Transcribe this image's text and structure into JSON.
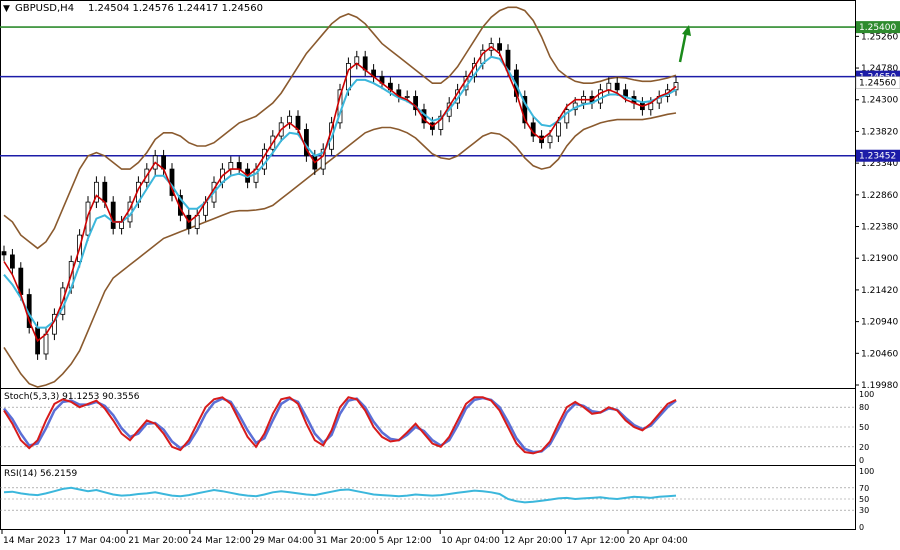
{
  "header": {
    "symbol": "GBPUSD,H4",
    "ohlc": "1.24504 1.24576 1.24417 1.24560"
  },
  "stoch": {
    "label": "Stoch(5,3,3) 91.1253 90.3556",
    "levels": [
      "100",
      "80",
      "50",
      "20",
      "0"
    ]
  },
  "rsi": {
    "label": "RSI(14) 56.2159",
    "levels": [
      "100",
      "70",
      "50",
      "30",
      "0"
    ]
  },
  "colors": {
    "candle": "#000000",
    "fast_ma": "#cc0000",
    "slow_ma": "#3bb7dc",
    "bollinger": "#8a5a2e",
    "level_green": "#2e8b2e",
    "level_blue": "#1c1ca8",
    "stoch_main": "#d81b1b",
    "stoch_signal": "#5b6fd6",
    "rsi_line": "#3bb7dc",
    "arrow": "#1a8a1a"
  },
  "chart_data": [
    {
      "type": "candlestick",
      "title": "GBPUSD,H4",
      "ylim": [
        1.1998,
        1.2575
      ],
      "yticks": [
        "1.25260",
        "1.24780",
        "1.24300",
        "1.23820",
        "1.23340",
        "1.22860",
        "1.22380",
        "1.21900",
        "1.21420",
        "1.20940",
        "1.20460",
        "1.19980"
      ],
      "xticks": [
        "14 Mar 2023",
        "17 Mar 04:00",
        "21 Mar 20:00",
        "24 Mar 12:00",
        "29 Mar 04:00",
        "31 Mar 20:00",
        "5 Apr 12:00",
        "10 Apr 04:00",
        "12 Apr 20:00",
        "17 Apr 12:00",
        "20 Apr 04:00"
      ],
      "levels": [
        {
          "value": 1.254,
          "label": "1.25400",
          "color": "#2e8b2e"
        },
        {
          "value": 1.2465,
          "label": "1.24650",
          "color": "#1c1ca8"
        },
        {
          "value": 1.23452,
          "label": "1.23452",
          "color": "#1c1ca8"
        }
      ],
      "current_price": "1.24560",
      "close_series": [
        1.2195,
        1.2175,
        1.2135,
        1.2085,
        1.2045,
        1.2075,
        1.2105,
        1.2145,
        1.2185,
        1.2225,
        1.2275,
        1.2305,
        1.2275,
        1.2235,
        1.2245,
        1.2275,
        1.2305,
        1.2325,
        1.2345,
        1.2325,
        1.2285,
        1.2255,
        1.2235,
        1.2255,
        1.2275,
        1.2305,
        1.2325,
        1.2335,
        1.2325,
        1.2305,
        1.2325,
        1.2355,
        1.2375,
        1.2395,
        1.2405,
        1.2385,
        1.2345,
        1.2325,
        1.2355,
        1.2395,
        1.2445,
        1.2485,
        1.2495,
        1.2475,
        1.2465,
        1.2455,
        1.2445,
        1.2435,
        1.2435,
        1.2415,
        1.2395,
        1.2385,
        1.2405,
        1.2425,
        1.2445,
        1.2465,
        1.2485,
        1.2505,
        1.2515,
        1.2505,
        1.2475,
        1.2435,
        1.2395,
        1.2375,
        1.2365,
        1.2375,
        1.2395,
        1.2415,
        1.2425,
        1.2435,
        1.2425,
        1.2445,
        1.2455,
        1.2445,
        1.2435,
        1.2425,
        1.2415,
        1.2425,
        1.2435,
        1.2445,
        1.2456
      ],
      "fast_ma": [
        1.2185,
        1.2165,
        1.2135,
        1.2095,
        1.2065,
        1.2075,
        1.2095,
        1.2125,
        1.2165,
        1.2205,
        1.2255,
        1.2285,
        1.2275,
        1.2245,
        1.2245,
        1.2265,
        1.2295,
        1.2315,
        1.2335,
        1.2325,
        1.2295,
        1.2265,
        1.2245,
        1.2255,
        1.2275,
        1.2295,
        1.2315,
        1.2325,
        1.2325,
        1.2315,
        1.2325,
        1.2345,
        1.2365,
        1.2385,
        1.2395,
        1.2385,
        1.2355,
        1.2335,
        1.2345,
        1.2385,
        1.2435,
        1.2475,
        1.2485,
        1.2475,
        1.2465,
        1.2455,
        1.2445,
        1.2435,
        1.243,
        1.242,
        1.24,
        1.239,
        1.24,
        1.242,
        1.244,
        1.246,
        1.248,
        1.25,
        1.251,
        1.25,
        1.247,
        1.244,
        1.24,
        1.238,
        1.237,
        1.238,
        1.24,
        1.242,
        1.243,
        1.243,
        1.243,
        1.244,
        1.2445,
        1.244,
        1.243,
        1.2425,
        1.242,
        1.2425,
        1.2435,
        1.244,
        1.245
      ],
      "slow_ma": [
        1.2165,
        1.215,
        1.213,
        1.2105,
        1.2085,
        1.2085,
        1.2095,
        1.2115,
        1.2145,
        1.218,
        1.222,
        1.225,
        1.2255,
        1.2245,
        1.2245,
        1.2255,
        1.2275,
        1.2295,
        1.2315,
        1.2315,
        1.23,
        1.228,
        1.2265,
        1.2265,
        1.2275,
        1.229,
        1.2305,
        1.2315,
        1.2318,
        1.2313,
        1.2318,
        1.2333,
        1.235,
        1.2368,
        1.238,
        1.2378,
        1.236,
        1.2345,
        1.235,
        1.2372,
        1.241,
        1.2445,
        1.246,
        1.246,
        1.2455,
        1.2448,
        1.244,
        1.2433,
        1.2428,
        1.242,
        1.2408,
        1.2398,
        1.2402,
        1.2415,
        1.2432,
        1.245,
        1.2468,
        1.2485,
        1.2495,
        1.2492,
        1.2475,
        1.2452,
        1.2425,
        1.2405,
        1.2392,
        1.239,
        1.2398,
        1.241,
        1.2418,
        1.2423,
        1.2425,
        1.2432,
        1.2438,
        1.2438,
        1.2434,
        1.243,
        1.2426,
        1.2428,
        1.2433,
        1.2438,
        1.2445
      ],
      "bb_upper": [
        1.2255,
        1.2245,
        1.2225,
        1.2215,
        1.2205,
        1.2215,
        1.2235,
        1.2265,
        1.2295,
        1.2325,
        1.2345,
        1.235,
        1.2345,
        1.2335,
        1.2325,
        1.2325,
        1.2335,
        1.235,
        1.237,
        1.238,
        1.238,
        1.2375,
        1.2365,
        1.236,
        1.236,
        1.2365,
        1.2375,
        1.2385,
        1.2395,
        1.24,
        1.2405,
        1.2415,
        1.2425,
        1.244,
        1.246,
        1.248,
        1.25,
        1.2515,
        1.253,
        1.2545,
        1.2555,
        1.256,
        1.2555,
        1.2545,
        1.253,
        1.2515,
        1.2505,
        1.2495,
        1.2485,
        1.2475,
        1.2465,
        1.2455,
        1.2455,
        1.2465,
        1.248,
        1.25,
        1.252,
        1.254,
        1.2555,
        1.2565,
        1.257,
        1.257,
        1.2565,
        1.255,
        1.2525,
        1.2495,
        1.2475,
        1.2465,
        1.2458,
        1.2455,
        1.2455,
        1.2458,
        1.2462,
        1.2464,
        1.2463,
        1.246,
        1.2458,
        1.2458,
        1.246,
        1.2463,
        1.2467
      ],
      "bb_lower": [
        1.2055,
        1.2035,
        1.2015,
        1.2,
        1.1995,
        1.1998,
        1.2003,
        1.2015,
        1.203,
        1.205,
        1.208,
        1.211,
        1.214,
        1.216,
        1.217,
        1.218,
        1.219,
        1.22,
        1.221,
        1.222,
        1.2225,
        1.223,
        1.2235,
        1.224,
        1.2245,
        1.225,
        1.2255,
        1.226,
        1.2262,
        1.2262,
        1.2263,
        1.2265,
        1.227,
        1.228,
        1.229,
        1.23,
        1.231,
        1.232,
        1.233,
        1.234,
        1.235,
        1.236,
        1.237,
        1.238,
        1.2385,
        1.2388,
        1.2388,
        1.2385,
        1.238,
        1.2372,
        1.236,
        1.2348,
        1.2342,
        1.234,
        1.2345,
        1.2355,
        1.2365,
        1.2375,
        1.238,
        1.2378,
        1.237,
        1.2358,
        1.2342,
        1.233,
        1.2325,
        1.2328,
        1.234,
        1.236,
        1.2375,
        1.2385,
        1.239,
        1.2395,
        1.2398,
        1.24,
        1.24,
        1.24,
        1.24,
        1.2402,
        1.2405,
        1.2408,
        1.241
      ]
    },
    {
      "type": "line",
      "title": "Stoch(5,3,3) 91.1253 90.3556",
      "ylim": [
        0,
        100
      ],
      "yticks": [
        "100",
        "80",
        "50",
        "20",
        "0"
      ],
      "series": [
        {
          "name": "main",
          "values": [
            75,
            55,
            30,
            18,
            30,
            60,
            85,
            92,
            88,
            80,
            85,
            90,
            78,
            60,
            40,
            30,
            45,
            60,
            55,
            40,
            20,
            15,
            30,
            55,
            80,
            92,
            95,
            85,
            60,
            35,
            20,
            40,
            70,
            92,
            95,
            85,
            55,
            30,
            22,
            45,
            80,
            95,
            92,
            75,
            50,
            35,
            28,
            30,
            42,
            55,
            40,
            25,
            20,
            35,
            60,
            85,
            95,
            95,
            90,
            75,
            50,
            25,
            12,
            10,
            14,
            28,
            55,
            80,
            88,
            80,
            70,
            72,
            80,
            75,
            60,
            50,
            45,
            55,
            70,
            85,
            91
          ]
        },
        {
          "name": "signal",
          "values": [
            78,
            62,
            40,
            22,
            25,
            48,
            75,
            88,
            90,
            84,
            84,
            88,
            82,
            68,
            48,
            35,
            40,
            55,
            56,
            46,
            28,
            18,
            25,
            45,
            70,
            87,
            93,
            88,
            68,
            45,
            26,
            33,
            60,
            85,
            93,
            88,
            65,
            40,
            26,
            38,
            70,
            90,
            93,
            80,
            58,
            42,
            32,
            30,
            38,
            50,
            44,
            30,
            22,
            30,
            52,
            78,
            91,
            94,
            91,
            80,
            58,
            33,
            17,
            12,
            13,
            24,
            47,
            72,
            85,
            82,
            74,
            72,
            78,
            76,
            64,
            53,
            47,
            52,
            66,
            80,
            90
          ]
        }
      ]
    },
    {
      "type": "line",
      "title": "RSI(14) 56.2159",
      "ylim": [
        0,
        100
      ],
      "yticks": [
        "100",
        "70",
        "50",
        "30",
        "0"
      ],
      "series": [
        {
          "name": "RSI(14)",
          "values": [
            62,
            63,
            60,
            58,
            57,
            60,
            64,
            68,
            70,
            67,
            64,
            66,
            62,
            58,
            56,
            57,
            59,
            60,
            62,
            59,
            56,
            55,
            57,
            60,
            63,
            66,
            64,
            61,
            58,
            56,
            55,
            58,
            62,
            64,
            62,
            60,
            58,
            57,
            60,
            63,
            66,
            67,
            64,
            61,
            58,
            57,
            56,
            55,
            56,
            58,
            57,
            56,
            57,
            59,
            61,
            63,
            65,
            64,
            62,
            59,
            50,
            46,
            44,
            45,
            47,
            49,
            51,
            52,
            50,
            51,
            52,
            53,
            51,
            50,
            52,
            54,
            53,
            52,
            54,
            55,
            56
          ]
        }
      ]
    }
  ]
}
